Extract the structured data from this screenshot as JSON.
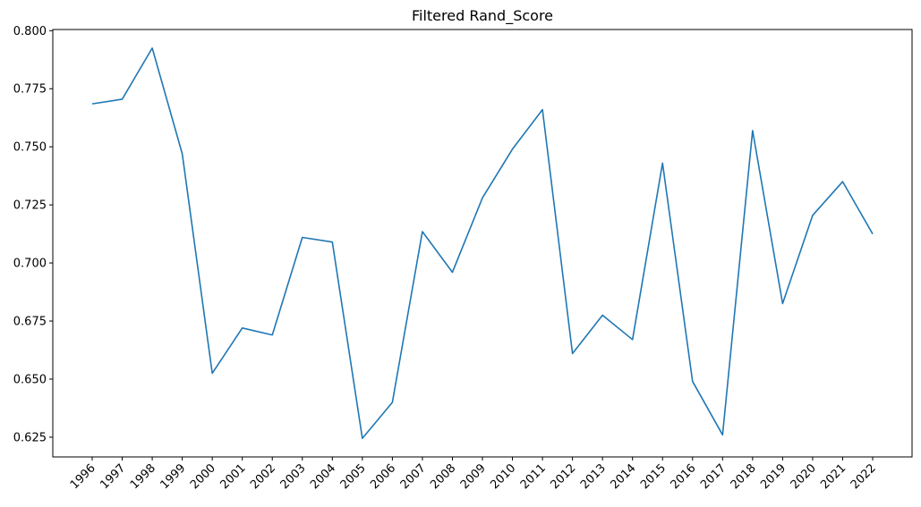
{
  "chart_data": {
    "type": "line",
    "title": "Filtered Rand_Score",
    "xlabel": "",
    "ylabel": "",
    "categories": [
      "1996",
      "1997",
      "1998",
      "1999",
      "2000",
      "2001",
      "2002",
      "2003",
      "2004",
      "2005",
      "2006",
      "2007",
      "2008",
      "2009",
      "2010",
      "2011",
      "2012",
      "2013",
      "2014",
      "2015",
      "2016",
      "2017",
      "2018",
      "2019",
      "2020",
      "2021",
      "2022"
    ],
    "series": [
      {
        "values": [
          0.7685,
          0.7705,
          0.7925,
          0.747,
          0.6525,
          0.672,
          0.669,
          0.711,
          0.709,
          0.6245,
          0.64,
          0.7135,
          0.696,
          0.728,
          0.749,
          0.766,
          0.661,
          0.6775,
          0.667,
          0.743,
          0.649,
          0.626,
          0.757,
          0.6825,
          0.7205,
          0.735,
          0.7125
        ],
        "color": "#1f77b4"
      }
    ],
    "ylim": [
      0.6165,
      0.8005
    ],
    "yticks": [
      0.625,
      0.65,
      0.675,
      0.7,
      0.725,
      0.75,
      0.775,
      0.8
    ],
    "ytick_labels": [
      "0.625",
      "0.650",
      "0.675",
      "0.700",
      "0.725",
      "0.750",
      "0.775",
      "0.800"
    ],
    "grid": false,
    "legend": "none"
  }
}
